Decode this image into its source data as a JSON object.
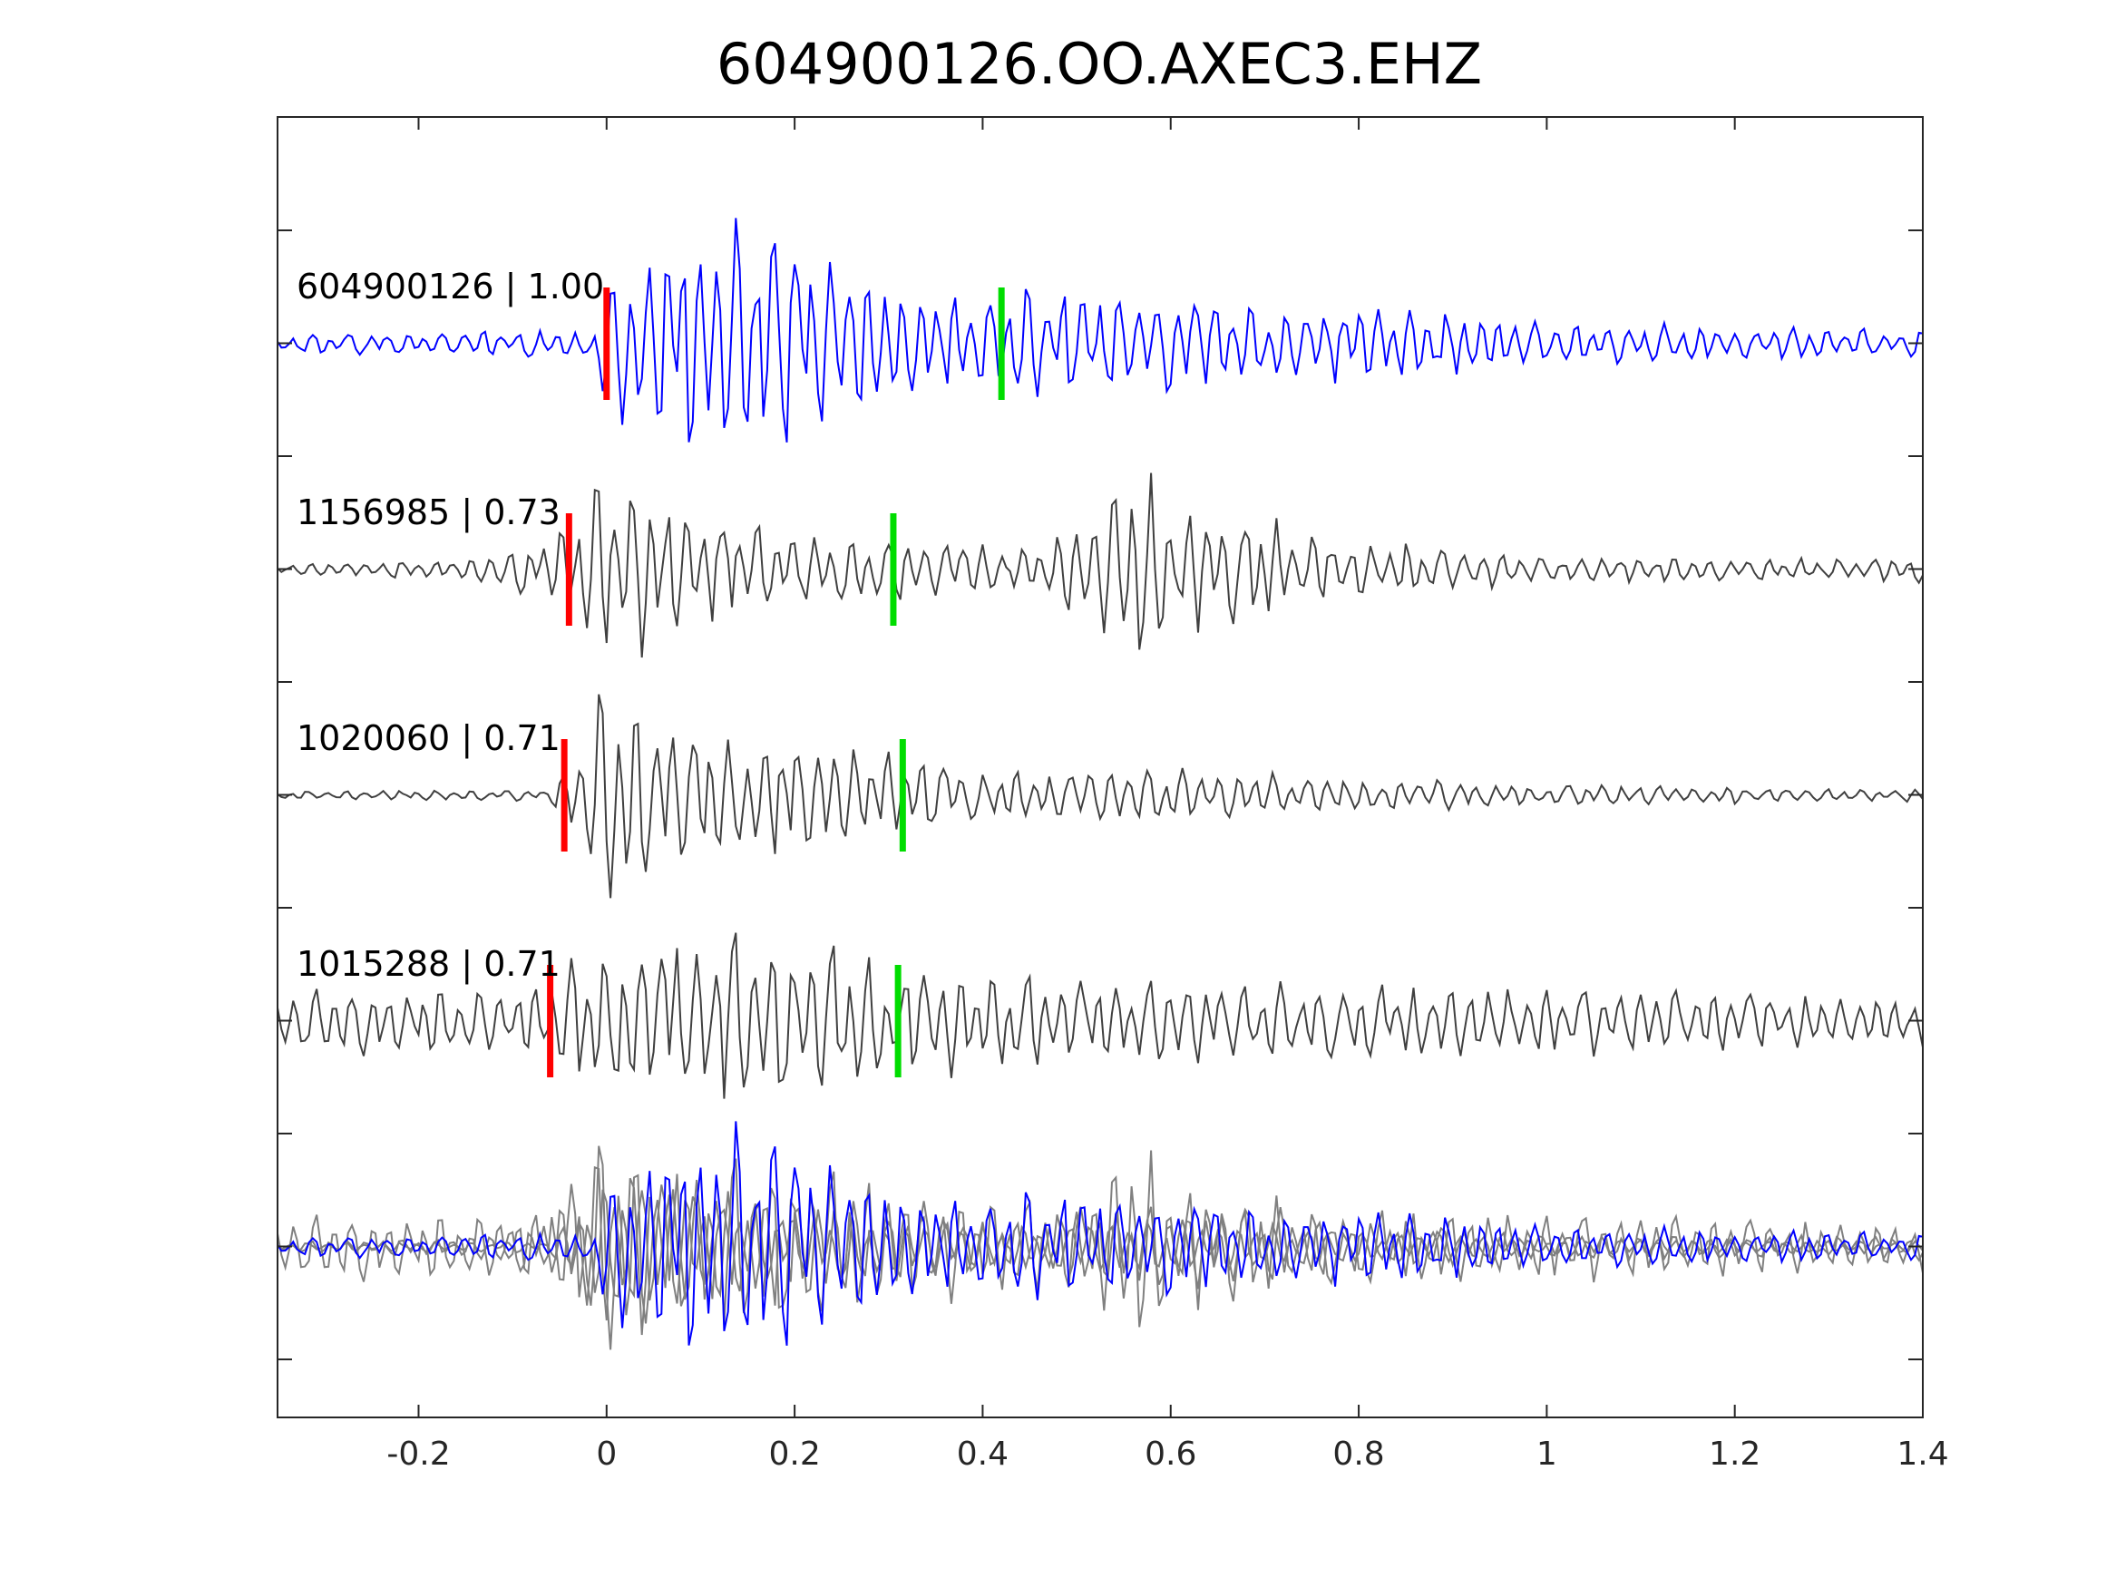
{
  "chart_data": {
    "type": "line",
    "title": "604900126.OO.AXEC3.EHZ",
    "xlabel": "",
    "ylabel": "",
    "xlim": [
      -0.35,
      1.4
    ],
    "xticks": [
      -0.2,
      0,
      0.2,
      0.4,
      0.6,
      0.8,
      1,
      1.2,
      1.4
    ],
    "xtick_labels": [
      "-0.2",
      "0",
      "0.2",
      "0.4",
      "0.6",
      "0.8",
      "1",
      "1.2",
      "1.4"
    ],
    "y_tick_count": 11,
    "grid": false,
    "legend": "none",
    "colors": {
      "master": "#0000ff",
      "match": "#404040",
      "overlay_match": "#808080",
      "p_pick": "#ff0000",
      "s_pick": "#00dd00",
      "axis": "#262626"
    },
    "traces": [
      {
        "label": "604900126 | 1.00",
        "event_id": "604900126",
        "correlation": 1.0,
        "p_pick": 0.0,
        "s_pick": 0.42,
        "role": "master",
        "envelope": [
          [
            -0.35,
            0.15
          ],
          [
            -0.02,
            0.2
          ],
          [
            0.0,
            1.0
          ],
          [
            0.05,
            1.6
          ],
          [
            0.17,
            1.8
          ],
          [
            0.25,
            1.2
          ],
          [
            0.35,
            0.7
          ],
          [
            0.5,
            0.8
          ],
          [
            0.65,
            0.6
          ],
          [
            0.85,
            0.5
          ],
          [
            1.0,
            0.3
          ],
          [
            1.4,
            0.2
          ]
        ],
        "seed": 17
      },
      {
        "label": "1156985 | 0.73",
        "event_id": "1156985",
        "correlation": 0.73,
        "p_pick": -0.04,
        "s_pick": 0.305,
        "role": "match",
        "envelope": [
          [
            -0.35,
            0.08
          ],
          [
            -0.15,
            0.15
          ],
          [
            -0.05,
            0.5
          ],
          [
            -0.01,
            1.4
          ],
          [
            0.1,
            0.8
          ],
          [
            0.2,
            0.5
          ],
          [
            0.3,
            0.45
          ],
          [
            0.45,
            0.3
          ],
          [
            0.52,
            0.8
          ],
          [
            0.56,
            1.6
          ],
          [
            0.6,
            0.9
          ],
          [
            0.7,
            0.7
          ],
          [
            0.8,
            0.4
          ],
          [
            1.0,
            0.2
          ],
          [
            1.35,
            0.15
          ],
          [
            1.4,
            0.2
          ]
        ],
        "seed": 29
      },
      {
        "label": "1020060 | 0.71",
        "event_id": "1020060",
        "correlation": 0.71,
        "p_pick": -0.045,
        "s_pick": 0.315,
        "role": "match",
        "envelope": [
          [
            -0.35,
            0.06
          ],
          [
            -0.06,
            0.08
          ],
          [
            -0.02,
            1.0
          ],
          [
            0.0,
            1.8
          ],
          [
            0.1,
            1.0
          ],
          [
            0.3,
            0.6
          ],
          [
            0.4,
            0.35
          ],
          [
            0.6,
            0.4
          ],
          [
            0.7,
            0.3
          ],
          [
            1.0,
            0.15
          ],
          [
            1.4,
            0.08
          ]
        ],
        "seed": 41
      },
      {
        "label": "1015288 | 0.71",
        "event_id": "1015288",
        "correlation": 0.71,
        "p_pick": -0.06,
        "s_pick": 0.31,
        "role": "match",
        "envelope": [
          [
            -0.35,
            0.45
          ],
          [
            -0.08,
            0.5
          ],
          [
            -0.02,
            1.1
          ],
          [
            0.05,
            1.3
          ],
          [
            0.2,
            1.2
          ],
          [
            0.3,
            0.8
          ],
          [
            0.5,
            0.6
          ],
          [
            0.8,
            0.55
          ],
          [
            1.0,
            0.5
          ],
          [
            1.4,
            0.35
          ]
        ],
        "seed": 53
      }
    ]
  }
}
